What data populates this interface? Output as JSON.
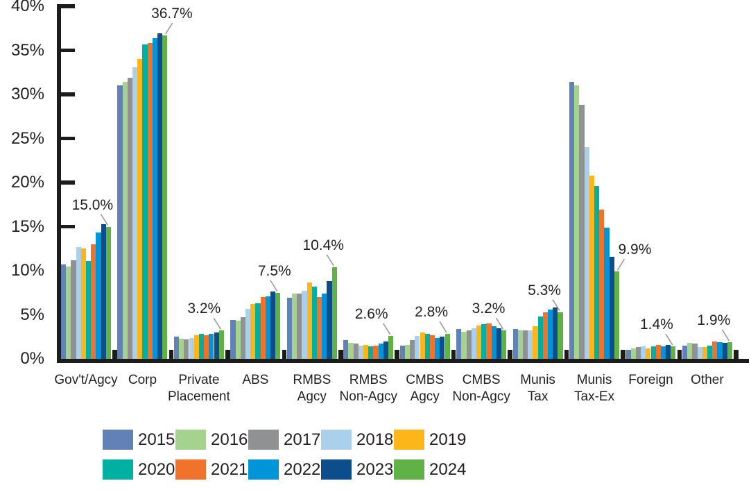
{
  "chart_data": {
    "type": "bar",
    "variant": "grouped",
    "title": "",
    "y_axis": {
      "min": 0,
      "max": 40,
      "tick_step": 5,
      "tick_labels": [
        "0%",
        "5%",
        "10%",
        "15%",
        "20%",
        "25%",
        "30%",
        "35%",
        "40%"
      ],
      "grid": false
    },
    "categories": [
      {
        "label": "Gov't/Agcy",
        "lines": [
          "Gov't/Agcy"
        ],
        "callout": "15.0%",
        "callout_dx": -23
      },
      {
        "label": "Corp",
        "lines": [
          "Corp"
        ],
        "callout": "36.7%",
        "callout_dx": 10
      },
      {
        "label": "Private Placement",
        "lines": [
          "Private",
          "Placement"
        ],
        "callout": "3.2%",
        "callout_dx": -25
      },
      {
        "label": "ABS",
        "lines": [
          "ABS"
        ],
        "callout": "7.5%",
        "callout_dx": -5
      },
      {
        "label": "RMBS Agcy",
        "lines": [
          "RMBS",
          "Agcy"
        ],
        "callout": "10.4%",
        "callout_dx": -16
      },
      {
        "label": "RMBS Non-Agcy",
        "lines": [
          "RMBS",
          "Non-Agcy"
        ],
        "callout": "2.6%",
        "callout_dx": -28
      },
      {
        "label": "CMBS Agcy",
        "lines": [
          "CMBS",
          "Agcy"
        ],
        "callout": "2.8%",
        "callout_dx": -23
      },
      {
        "label": "CMBS Non-Agcy",
        "lines": [
          "CMBS",
          "Non-Agcy"
        ],
        "callout": "3.2%",
        "callout_dx": -22
      },
      {
        "label": "Munis Tax",
        "lines": [
          "Munis",
          "Tax"
        ],
        "callout": "5.3%",
        "callout_dx": -23
      },
      {
        "label": "Munis Tax-Ex",
        "lines": [
          "Munis",
          "Tax-Ex"
        ],
        "callout": "9.9%",
        "callout_dx": 26
      },
      {
        "label": "Foreign",
        "lines": [
          "Foreign"
        ],
        "callout": "1.4%",
        "callout_dx": -24
      },
      {
        "label": "Other",
        "lines": [
          "Other"
        ],
        "callout": "1.9%",
        "callout_dx": -23
      }
    ],
    "series": [
      {
        "name": "2015",
        "color": "#6282b5",
        "values": [
          10.7,
          31.0,
          2.5,
          4.4,
          6.9,
          2.1,
          1.5,
          3.4,
          3.4,
          31.4,
          1.0,
          1.5
        ]
      },
      {
        "name": "2016",
        "color": "#a5d28e",
        "values": [
          10.5,
          31.4,
          2.3,
          4.3,
          7.4,
          1.8,
          1.6,
          3.1,
          3.2,
          31.0,
          1.2,
          1.8
        ]
      },
      {
        "name": "2017",
        "color": "#8f9192",
        "values": [
          11.2,
          31.9,
          2.2,
          4.7,
          7.4,
          1.7,
          2.1,
          3.2,
          3.2,
          28.8,
          1.3,
          1.7
        ]
      },
      {
        "name": "2018",
        "color": "#abd0ec",
        "values": [
          12.7,
          33.1,
          2.4,
          5.7,
          7.7,
          1.5,
          2.6,
          3.5,
          3.2,
          24.0,
          1.4,
          1.3
        ]
      },
      {
        "name": "2019",
        "color": "#fcb61a",
        "values": [
          12.5,
          34.0,
          2.7,
          6.2,
          8.7,
          1.6,
          3.0,
          3.8,
          3.7,
          20.8,
          1.2,
          1.3
        ]
      },
      {
        "name": "2020",
        "color": "#00b0a2",
        "values": [
          11.1,
          35.7,
          2.8,
          6.3,
          8.2,
          1.4,
          2.8,
          3.9,
          4.8,
          19.6,
          1.4,
          1.5
        ]
      },
      {
        "name": "2021",
        "color": "#f0722b",
        "values": [
          13.0,
          35.8,
          2.7,
          7.0,
          7.0,
          1.5,
          2.7,
          4.0,
          5.3,
          16.9,
          1.6,
          2.0
        ]
      },
      {
        "name": "2022",
        "color": "#0094d8",
        "values": [
          14.3,
          36.4,
          2.8,
          7.1,
          7.4,
          1.7,
          2.4,
          3.7,
          5.6,
          14.9,
          1.4,
          1.9
        ]
      },
      {
        "name": "2023",
        "color": "#0c4d8c",
        "values": [
          15.3,
          36.9,
          3.0,
          7.6,
          8.8,
          2.0,
          2.5,
          3.5,
          5.8,
          11.6,
          1.6,
          1.8
        ]
      },
      {
        "name": "2024",
        "color": "#60b246",
        "values": [
          15.0,
          36.7,
          3.2,
          7.5,
          10.4,
          2.6,
          2.8,
          3.2,
          5.3,
          9.9,
          1.4,
          1.9
        ]
      }
    ],
    "data_labels": {
      "labeled_series": "2024",
      "values": [
        "15.0%",
        "36.7%",
        "3.2%",
        "7.5%",
        "10.4%",
        "2.6%",
        "2.8%",
        "3.2%",
        "5.3%",
        "9.9%",
        "1.4%",
        "1.9%"
      ]
    },
    "legend": {
      "position": "bottom",
      "rows": [
        [
          "2015",
          "2016",
          "2017",
          "2018",
          "2019"
        ],
        [
          "2020",
          "2021",
          "2022",
          "2023",
          "2024"
        ]
      ]
    }
  },
  "colors": {
    "text": "#231f20",
    "axis": "#1c1c1a",
    "leader_line": "#9b9b9b",
    "background": "#ffffff"
  }
}
